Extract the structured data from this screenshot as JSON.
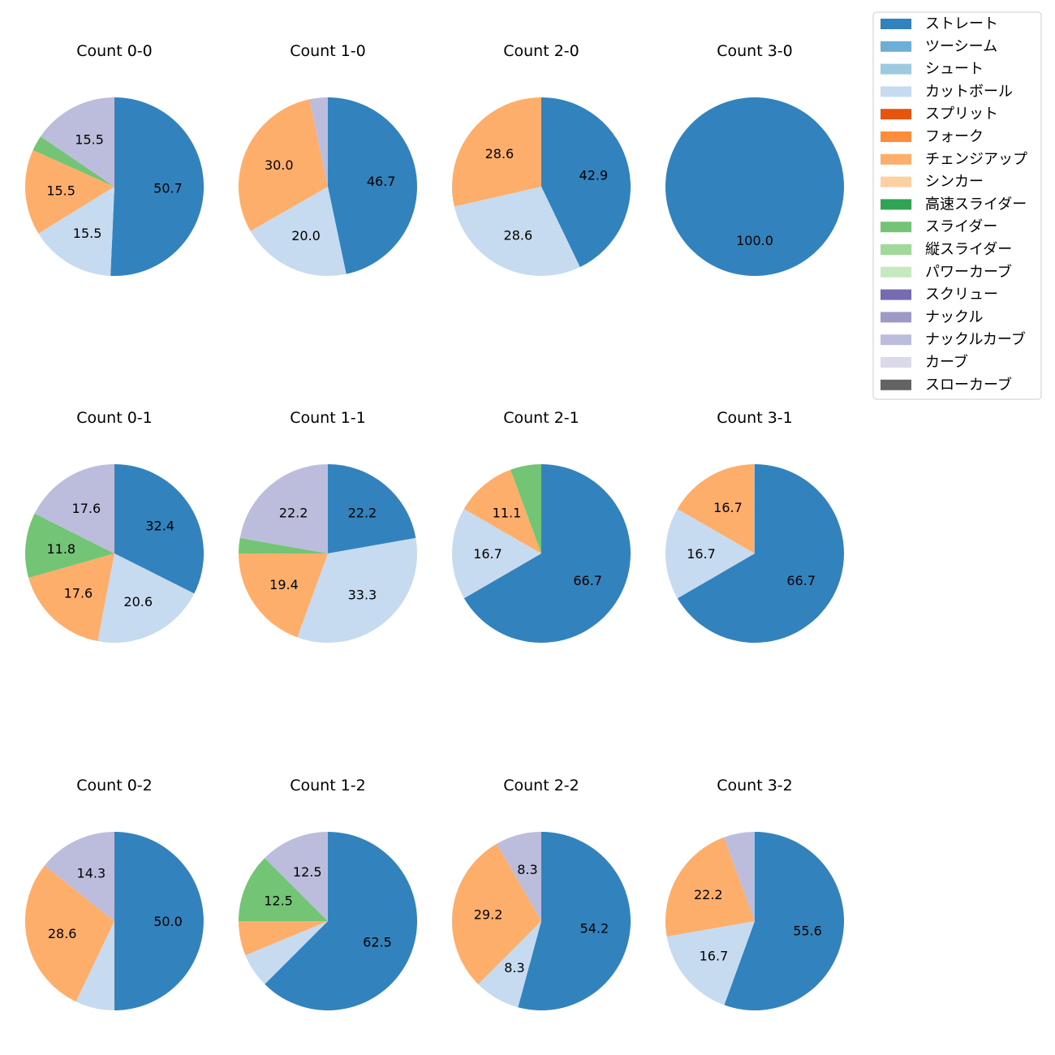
{
  "chart_data": {
    "type": "pie",
    "legend": {
      "placement": "top-right",
      "entries": [
        {
          "name": "ストレート",
          "color": "#3182bd"
        },
        {
          "name": "ツーシーム",
          "color": "#6baed6"
        },
        {
          "name": "シュート",
          "color": "#9ecae1"
        },
        {
          "name": "カットボール",
          "color": "#c6dbef"
        },
        {
          "name": "スプリット",
          "color": "#e6550d"
        },
        {
          "name": "フォーク",
          "color": "#fd8d3c"
        },
        {
          "name": "チェンジアップ",
          "color": "#fdae6b"
        },
        {
          "name": "シンカー",
          "color": "#fdd0a2"
        },
        {
          "name": "高速スライダー",
          "color": "#31a354"
        },
        {
          "name": "スライダー",
          "color": "#74c476"
        },
        {
          "name": "縦スライダー",
          "color": "#a1d99b"
        },
        {
          "name": "パワーカーブ",
          "color": "#c7e9c0"
        },
        {
          "name": "スクリュー",
          "color": "#756bb1"
        },
        {
          "name": "ナックル",
          "color": "#9e9ac8"
        },
        {
          "name": "ナックルカーブ",
          "color": "#bcbddc"
        },
        {
          "name": "カーブ",
          "color": "#dadaeb"
        },
        {
          "name": "スローカーブ",
          "color": "#636363"
        }
      ]
    },
    "pies": [
      {
        "title": "Count 0-0",
        "slices": [
          {
            "pitch": "ストレート",
            "value": 50.7,
            "label": "50.7"
          },
          {
            "pitch": "カットボール",
            "value": 15.5,
            "label": "15.5"
          },
          {
            "pitch": "チェンジアップ",
            "value": 15.5,
            "label": "15.5"
          },
          {
            "pitch": "スライダー",
            "value": 2.8,
            "label": ""
          },
          {
            "pitch": "ナックルカーブ",
            "value": 15.5,
            "label": "15.5"
          }
        ]
      },
      {
        "title": "Count 1-0",
        "slices": [
          {
            "pitch": "ストレート",
            "value": 46.7,
            "label": "46.7"
          },
          {
            "pitch": "カットボール",
            "value": 20.0,
            "label": "20.0"
          },
          {
            "pitch": "チェンジアップ",
            "value": 30.0,
            "label": "30.0"
          },
          {
            "pitch": "ナックルカーブ",
            "value": 3.3,
            "label": ""
          }
        ]
      },
      {
        "title": "Count 2-0",
        "slices": [
          {
            "pitch": "ストレート",
            "value": 42.9,
            "label": "42.9"
          },
          {
            "pitch": "カットボール",
            "value": 28.6,
            "label": "28.6"
          },
          {
            "pitch": "チェンジアップ",
            "value": 28.6,
            "label": "28.6"
          }
        ]
      },
      {
        "title": "Count 3-0",
        "slices": [
          {
            "pitch": "ストレート",
            "value": 100.0,
            "label": "100.0"
          }
        ]
      },
      {
        "title": "Count 0-1",
        "slices": [
          {
            "pitch": "ストレート",
            "value": 32.4,
            "label": "32.4"
          },
          {
            "pitch": "カットボール",
            "value": 20.6,
            "label": "20.6"
          },
          {
            "pitch": "チェンジアップ",
            "value": 17.6,
            "label": "17.6"
          },
          {
            "pitch": "スライダー",
            "value": 11.8,
            "label": "11.8"
          },
          {
            "pitch": "ナックルカーブ",
            "value": 17.6,
            "label": "17.6"
          }
        ]
      },
      {
        "title": "Count 1-1",
        "slices": [
          {
            "pitch": "ストレート",
            "value": 22.2,
            "label": "22.2"
          },
          {
            "pitch": "カットボール",
            "value": 33.3,
            "label": "33.3"
          },
          {
            "pitch": "チェンジアップ",
            "value": 19.4,
            "label": "19.4"
          },
          {
            "pitch": "スライダー",
            "value": 2.8,
            "label": ""
          },
          {
            "pitch": "ナックルカーブ",
            "value": 22.2,
            "label": "22.2"
          }
        ]
      },
      {
        "title": "Count 2-1",
        "slices": [
          {
            "pitch": "ストレート",
            "value": 66.7,
            "label": "66.7"
          },
          {
            "pitch": "カットボール",
            "value": 16.7,
            "label": "16.7"
          },
          {
            "pitch": "チェンジアップ",
            "value": 11.1,
            "label": "11.1"
          },
          {
            "pitch": "スライダー",
            "value": 5.6,
            "label": ""
          }
        ]
      },
      {
        "title": "Count 3-1",
        "slices": [
          {
            "pitch": "ストレート",
            "value": 66.7,
            "label": "66.7"
          },
          {
            "pitch": "カットボール",
            "value": 16.7,
            "label": "16.7"
          },
          {
            "pitch": "チェンジアップ",
            "value": 16.7,
            "label": "16.7"
          }
        ]
      },
      {
        "title": "Count 0-2",
        "slices": [
          {
            "pitch": "ストレート",
            "value": 50.0,
            "label": "50.0"
          },
          {
            "pitch": "カットボール",
            "value": 7.1,
            "label": ""
          },
          {
            "pitch": "チェンジアップ",
            "value": 28.6,
            "label": "28.6"
          },
          {
            "pitch": "ナックルカーブ",
            "value": 14.3,
            "label": "14.3"
          }
        ]
      },
      {
        "title": "Count 1-2",
        "slices": [
          {
            "pitch": "ストレート",
            "value": 62.5,
            "label": "62.5"
          },
          {
            "pitch": "カットボール",
            "value": 6.25,
            "label": ""
          },
          {
            "pitch": "チェンジアップ",
            "value": 6.25,
            "label": ""
          },
          {
            "pitch": "スライダー",
            "value": 12.5,
            "label": "12.5"
          },
          {
            "pitch": "ナックルカーブ",
            "value": 12.5,
            "label": "12.5"
          }
        ]
      },
      {
        "title": "Count 2-2",
        "slices": [
          {
            "pitch": "ストレート",
            "value": 54.2,
            "label": "54.2"
          },
          {
            "pitch": "カットボール",
            "value": 8.3,
            "label": "8.3"
          },
          {
            "pitch": "チェンジアップ",
            "value": 29.2,
            "label": "29.2"
          },
          {
            "pitch": "ナックルカーブ",
            "value": 8.3,
            "label": "8.3"
          }
        ]
      },
      {
        "title": "Count 3-2",
        "slices": [
          {
            "pitch": "ストレート",
            "value": 55.6,
            "label": "55.6"
          },
          {
            "pitch": "カットボール",
            "value": 16.7,
            "label": "16.7"
          },
          {
            "pitch": "チェンジアップ",
            "value": 22.2,
            "label": "22.2"
          },
          {
            "pitch": "ナックルカーブ",
            "value": 5.6,
            "label": ""
          }
        ]
      }
    ]
  }
}
